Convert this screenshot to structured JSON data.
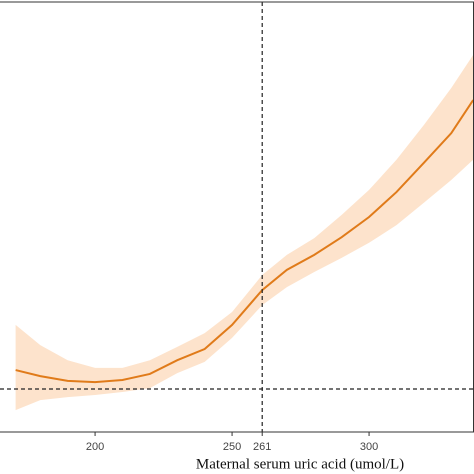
{
  "chart_data": {
    "type": "line",
    "x_label": "Maternal serum uric acid (umol/L)",
    "x": [
      171,
      180,
      190,
      200,
      210,
      220,
      230,
      240,
      250,
      261,
      270,
      280,
      290,
      300,
      310,
      320,
      330,
      338
    ],
    "values": [
      1.044,
      1.03,
      1.019,
      1.016,
      1.021,
      1.035,
      1.067,
      1.093,
      1.149,
      1.23,
      1.277,
      1.312,
      1.353,
      1.4,
      1.458,
      1.526,
      1.595,
      1.672
    ],
    "upper": [
      1.149,
      1.102,
      1.067,
      1.049,
      1.049,
      1.067,
      1.098,
      1.13,
      1.179,
      1.265,
      1.312,
      1.351,
      1.405,
      1.463,
      1.533,
      1.614,
      1.7,
      1.777
    ],
    "lower": [
      0.951,
      0.974,
      0.981,
      0.986,
      0.993,
      1.002,
      1.037,
      1.063,
      1.119,
      1.195,
      1.237,
      1.272,
      1.305,
      1.34,
      1.381,
      1.433,
      1.486,
      1.533
    ],
    "color": "#e07b1a",
    "band_color": "#fde3cc",
    "xlim": [
      165.3,
      338.3
    ],
    "ylim": [
      0.9,
      1.9
    ],
    "xticks": [
      200,
      250,
      261,
      300
    ],
    "vline": 261,
    "hline": 1.0
  }
}
